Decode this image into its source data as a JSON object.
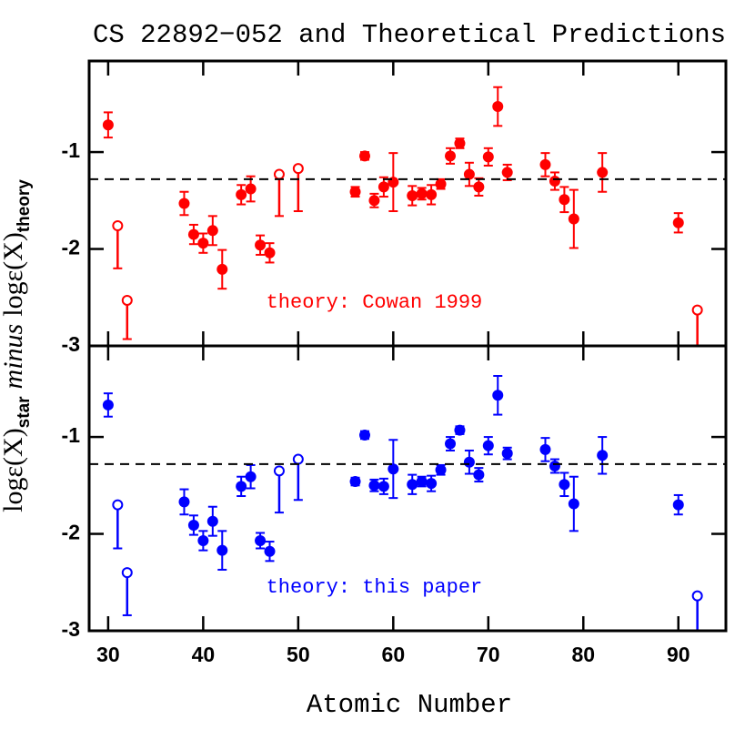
{
  "title": "CS 22892−052 and Theoretical Predictions",
  "x_label": "Atomic Number",
  "y_label": [
    "logε(X)",
    "star",
    "minus",
    "logε(X)",
    "theory"
  ],
  "chart_data": [
    {
      "type": "scatter",
      "annotation": "theory: Cowan 1999",
      "color": "#ff0000",
      "xlim": [
        28,
        95
      ],
      "ylim": [
        -3,
        -0.06
      ],
      "yticks": [
        -3,
        -2,
        -1
      ],
      "reference_line": -1.28,
      "series": [
        {
          "x": [
            30,
            38,
            39,
            40,
            41,
            42,
            44,
            45,
            46,
            47,
            56,
            57,
            58,
            59,
            60,
            62,
            63,
            64,
            65,
            66,
            67,
            68,
            69,
            70,
            71,
            72,
            76,
            77,
            78,
            79,
            82,
            90
          ],
          "values": [
            -0.72,
            -1.53,
            -1.85,
            -1.94,
            -1.81,
            -2.21,
            -1.44,
            -1.38,
            -1.96,
            -2.04,
            -1.41,
            -1.04,
            -1.5,
            -1.36,
            -1.31,
            -1.45,
            -1.43,
            -1.44,
            -1.33,
            -1.04,
            -0.91,
            -1.23,
            -1.36,
            -1.05,
            -0.53,
            -1.21,
            -1.13,
            -1.3,
            -1.49,
            -1.69,
            -1.21,
            -1.73
          ],
          "errors": [
            0.13,
            0.12,
            0.1,
            0.1,
            0.15,
            0.2,
            0.1,
            0.13,
            0.1,
            0.1,
            0.05,
            0.04,
            0.07,
            0.1,
            0.3,
            0.1,
            0.06,
            0.1,
            0.05,
            0.08,
            0.05,
            0.12,
            0.09,
            0.09,
            0.2,
            0.08,
            0.12,
            0.09,
            0.13,
            0.3,
            0.2,
            0.1
          ]
        },
        {
          "x": [
            31,
            32,
            48,
            50,
            92
          ],
          "values": [
            -1.76,
            -2.53,
            -1.23,
            -1.17,
            -2.63
          ],
          "limit_ends": [
            -2.2,
            -2.93,
            -1.66,
            -1.61,
            -3.2
          ]
        }
      ]
    },
    {
      "type": "scatter",
      "annotation": "theory: this paper",
      "color": "#0000ff",
      "xlim": [
        28,
        95
      ],
      "ylim": [
        -3,
        -0.06
      ],
      "yticks": [
        -3,
        -2,
        -1
      ],
      "xticks": [
        30,
        40,
        50,
        60,
        70,
        80,
        90
      ],
      "reference_line": -1.28,
      "series": [
        {
          "x": [
            30,
            38,
            39,
            40,
            41,
            42,
            44,
            45,
            46,
            47,
            56,
            57,
            58,
            59,
            60,
            62,
            63,
            64,
            65,
            66,
            67,
            68,
            69,
            70,
            71,
            72,
            76,
            77,
            78,
            79,
            82,
            90
          ],
          "values": [
            -0.67,
            -1.67,
            -1.91,
            -2.07,
            -1.87,
            -2.17,
            -1.51,
            -1.41,
            -2.07,
            -2.18,
            -1.46,
            -0.98,
            -1.5,
            -1.51,
            -1.33,
            -1.49,
            -1.46,
            -1.48,
            -1.34,
            -1.07,
            -0.93,
            -1.26,
            -1.39,
            -1.09,
            -0.57,
            -1.17,
            -1.13,
            -1.3,
            -1.49,
            -1.69,
            -1.19,
            -1.7
          ],
          "errors": [
            0.12,
            0.13,
            0.1,
            0.1,
            0.15,
            0.2,
            0.1,
            0.12,
            0.08,
            0.1,
            0.04,
            0.04,
            0.06,
            0.08,
            0.3,
            0.1,
            0.05,
            0.08,
            0.05,
            0.07,
            0.04,
            0.12,
            0.07,
            0.09,
            0.2,
            0.06,
            0.12,
            0.07,
            0.12,
            0.28,
            0.19,
            0.1
          ]
        },
        {
          "x": [
            31,
            32,
            48,
            50,
            92
          ],
          "values": [
            -1.7,
            -2.4,
            -1.35,
            -1.23,
            -2.64
          ],
          "limit_ends": [
            -2.15,
            -2.84,
            -1.78,
            -1.65,
            -3.2
          ]
        }
      ]
    }
  ]
}
